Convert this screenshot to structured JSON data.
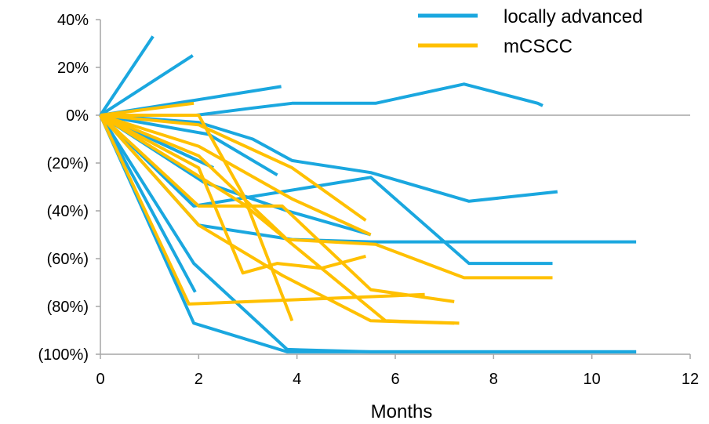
{
  "chart_data": {
    "type": "line",
    "xlabel": "Months",
    "ylabel": "",
    "xlim": [
      0,
      12
    ],
    "ylim": [
      -100,
      40
    ],
    "x_ticks": [
      {
        "value": 0,
        "label": "0"
      },
      {
        "value": 2,
        "label": "2"
      },
      {
        "value": 4,
        "label": "4"
      },
      {
        "value": 6,
        "label": "6"
      },
      {
        "value": 8,
        "label": "8"
      },
      {
        "value": 10,
        "label": "10"
      },
      {
        "value": 12,
        "label": "12"
      }
    ],
    "y_ticks": [
      {
        "value": 40,
        "label": "40%"
      },
      {
        "value": 20,
        "label": "20%"
      },
      {
        "value": 0,
        "label": "0%"
      },
      {
        "value": -20,
        "label": "(20%)"
      },
      {
        "value": -40,
        "label": "(40%)"
      },
      {
        "value": -60,
        "label": "(60%)"
      },
      {
        "value": -80,
        "label": "(80%)"
      },
      {
        "value": -100,
        "label": "(100%)"
      }
    ],
    "legend_position": "top-right",
    "reference_line": 0,
    "groups": [
      {
        "name": "locally advanced",
        "color": "#1AA7DF"
      },
      {
        "name": "mCSCC",
        "color": "#FFC000"
      }
    ],
    "series": [
      {
        "group": "locally advanced",
        "x": [
          0,
          1.07
        ],
        "y": [
          0,
          33
        ]
      },
      {
        "group": "locally advanced",
        "x": [
          0,
          1.88
        ],
        "y": [
          0,
          25
        ]
      },
      {
        "group": "locally advanced",
        "x": [
          0,
          3.68
        ],
        "y": [
          0,
          12
        ]
      },
      {
        "group": "locally advanced",
        "x": [
          0,
          1.95,
          3.1,
          3.9,
          5.6,
          7.4,
          8.9,
          9.0
        ],
        "y": [
          0,
          0,
          3,
          5,
          5,
          13,
          5,
          4
        ]
      },
      {
        "group": "locally advanced",
        "x": [
          0,
          2.0,
          3.1,
          3.9,
          5.5,
          7.5,
          9.3
        ],
        "y": [
          0,
          -3,
          -10,
          -19,
          -24,
          -36,
          -32
        ]
      },
      {
        "group": "locally advanced",
        "x": [
          0,
          1.9,
          5.5,
          7.5,
          9.2
        ],
        "y": [
          0,
          -38,
          -26,
          -62,
          -62
        ]
      },
      {
        "group": "locally advanced",
        "x": [
          0,
          2.0,
          3.9,
          5.5,
          7.5,
          10.9
        ],
        "y": [
          0,
          -46,
          -52,
          -53,
          -53,
          -53
        ]
      },
      {
        "group": "locally advanced",
        "x": [
          0,
          2.1,
          3.8,
          5.5
        ],
        "y": [
          0,
          -28,
          -40,
          -50
        ]
      },
      {
        "group": "locally advanced",
        "x": [
          0,
          2.3
        ],
        "y": [
          0,
          -22
        ]
      },
      {
        "group": "locally advanced",
        "x": [
          0,
          2.2,
          3.6
        ],
        "y": [
          0,
          -8,
          -25
        ]
      },
      {
        "group": "locally advanced",
        "x": [
          0,
          1.93
        ],
        "y": [
          0,
          -74
        ]
      },
      {
        "group": "locally advanced",
        "x": [
          0,
          1.9,
          3.8,
          5.5,
          7.5,
          10.9
        ],
        "y": [
          0,
          -62,
          -98,
          -99,
          -99,
          -99
        ]
      },
      {
        "group": "locally advanced",
        "x": [
          0,
          1.9,
          3.8,
          5.5,
          7.5,
          10.9
        ],
        "y": [
          0,
          -87,
          -99,
          -99,
          -99,
          -99
        ]
      },
      {
        "group": "mCSCC",
        "x": [
          0,
          1.9
        ],
        "y": [
          0,
          5
        ]
      },
      {
        "group": "mCSCC",
        "x": [
          0,
          2.0,
          2.9,
          3.9
        ],
        "y": [
          0,
          0,
          -33,
          -86
        ]
      },
      {
        "group": "mCSCC",
        "x": [
          0,
          2.0,
          3.9,
          5.4
        ],
        "y": [
          0,
          -4,
          -22,
          -44
        ]
      },
      {
        "group": "mCSCC",
        "x": [
          0,
          2.0,
          3.9,
          5.5
        ],
        "y": [
          0,
          -13,
          -35,
          -50
        ]
      },
      {
        "group": "mCSCC",
        "x": [
          0,
          2.0,
          3.8,
          5.6,
          7.4,
          9.2
        ],
        "y": [
          0,
          -17,
          -52,
          -54,
          -68,
          -68
        ]
      },
      {
        "group": "mCSCC",
        "x": [
          0,
          2.0,
          2.9,
          3.6,
          4.5,
          5.4
        ],
        "y": [
          0,
          -22,
          -66,
          -62,
          -64,
          -59
        ]
      },
      {
        "group": "mCSCC",
        "x": [
          0,
          2.0,
          3.7,
          5.5,
          7.2
        ],
        "y": [
          0,
          -38,
          -38,
          -73,
          -78
        ]
      },
      {
        "group": "mCSCC",
        "x": [
          0,
          2.0,
          3.7,
          5.5,
          7.2
        ],
        "y": [
          0,
          -46,
          -67,
          -86,
          -87
        ]
      },
      {
        "group": "mCSCC",
        "x": [
          0,
          1.8,
          6.6
        ],
        "y": [
          0,
          -79,
          -75
        ]
      },
      {
        "group": "mCSCC",
        "x": [
          0,
          2.9,
          5.8,
          7.3
        ],
        "y": [
          0,
          -37,
          -86,
          -87
        ]
      }
    ]
  }
}
